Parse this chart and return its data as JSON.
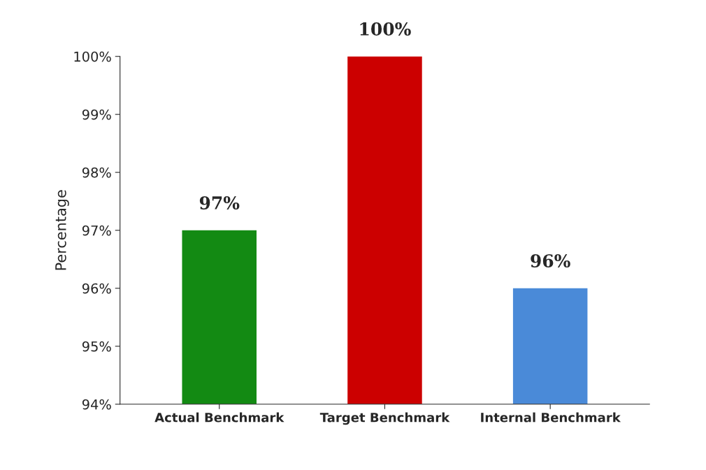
{
  "chart_data": {
    "type": "bar",
    "ylabel": "Percentage",
    "categories": [
      "Actual Benchmark",
      "Target Benchmark",
      "Internal Benchmark"
    ],
    "values": [
      97,
      100,
      96
    ],
    "colors": [
      "#138a13",
      "#cc0000",
      "#4a8ad8"
    ],
    "value_labels": [
      "97%",
      "100%",
      "96%"
    ],
    "ylim": [
      94,
      100
    ],
    "yticks": [
      {
        "value": 94,
        "label": "94%"
      },
      {
        "value": 95,
        "label": "95%"
      },
      {
        "value": 96,
        "label": "96%"
      },
      {
        "value": 97,
        "label": "97%"
      },
      {
        "value": 98,
        "label": "98%"
      },
      {
        "value": 99,
        "label": "99%"
      },
      {
        "value": 100,
        "label": "100%"
      }
    ],
    "grid": false
  }
}
